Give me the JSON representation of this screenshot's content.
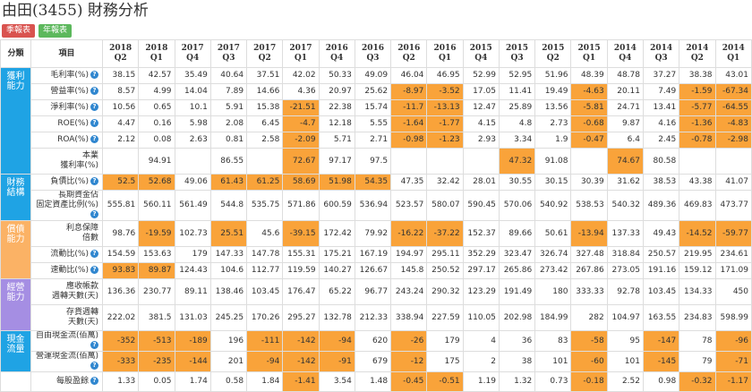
{
  "header": {
    "title": "由田(3455) 財務分析",
    "buttons": [
      {
        "label": "季報表",
        "color": "#d9534f"
      },
      {
        "label": "年報表",
        "color": "#5cb85c"
      }
    ]
  },
  "table": {
    "highlight_color": "#f9a33a",
    "columns": [
      "分類",
      "項目"
    ],
    "periods": [
      "2018\nQ2",
      "2018\nQ1",
      "2017\nQ4",
      "2017\nQ3",
      "2017\nQ2",
      "2017\nQ1",
      "2016\nQ4",
      "2016\nQ3",
      "2016\nQ2",
      "2016\nQ1",
      "2015\nQ4",
      "2015\nQ3",
      "2015\nQ2",
      "2015\nQ1",
      "2014\nQ4",
      "2014\nQ3",
      "2014\nQ2",
      "2014\nQ1"
    ],
    "groups": [
      {
        "label": "獲利\n能力",
        "color": "#1fa3e4",
        "rows": [
          {
            "label": "毛利率(%)",
            "help": true,
            "values": [
              38.15,
              42.57,
              35.49,
              40.64,
              37.51,
              42.02,
              50.33,
              49.09,
              46.04,
              46.95,
              52.99,
              52.95,
              51.96,
              48.39,
              48.78,
              37.27,
              38.38,
              43.01
            ],
            "highlight": []
          },
          {
            "label": "營益率(%)",
            "help": true,
            "values": [
              8.57,
              4.99,
              14.04,
              7.89,
              14.66,
              4.36,
              20.97,
              25.62,
              -8.97,
              -3.52,
              17.05,
              11.41,
              19.49,
              -4.63,
              20.11,
              7.49,
              -1.59,
              -67.34
            ],
            "highlight": [
              8,
              9,
              13,
              16,
              17
            ]
          },
          {
            "label": "淨利率(%)",
            "help": true,
            "values": [
              10.56,
              0.65,
              10.1,
              5.91,
              15.38,
              -21.51,
              22.38,
              15.74,
              -11.7,
              -13.13,
              12.47,
              25.89,
              13.56,
              -5.81,
              24.71,
              13.41,
              -5.77,
              -64.55
            ],
            "highlight": [
              5,
              8,
              9,
              13,
              16,
              17
            ]
          },
          {
            "label": "ROE(%)",
            "help": true,
            "values": [
              4.47,
              0.16,
              5.98,
              2.08,
              6.45,
              -4.7,
              12.18,
              5.55,
              -1.64,
              -1.77,
              4.15,
              4.8,
              2.73,
              -0.68,
              9.87,
              4.16,
              -1.36,
              -4.83
            ],
            "highlight": [
              5,
              8,
              9,
              13,
              16,
              17
            ]
          },
          {
            "label": "ROA(%)",
            "help": true,
            "values": [
              2.12,
              0.08,
              2.63,
              0.81,
              2.58,
              -2.09,
              5.71,
              2.71,
              -0.98,
              -1.23,
              2.93,
              3.34,
              1.9,
              -0.47,
              6.4,
              2.45,
              -0.78,
              -2.98
            ],
            "highlight": [
              5,
              8,
              9,
              13,
              16,
              17
            ]
          },
          {
            "label": "本業\n獲利率(%)",
            "help": false,
            "values": [
              null,
              94.91,
              null,
              86.55,
              null,
              72.67,
              97.17,
              97.5,
              null,
              null,
              null,
              47.32,
              91.08,
              null,
              74.67,
              80.58,
              null,
              null
            ],
            "highlight": [
              5,
              11,
              14
            ]
          }
        ]
      },
      {
        "label": "財務\n結構",
        "color": "#1fa3e4",
        "rows": [
          {
            "label": "負債比(%)",
            "help": true,
            "values": [
              52.5,
              52.68,
              49.06,
              61.43,
              61.25,
              58.69,
              51.98,
              54.35,
              47.35,
              32.42,
              28.01,
              30.55,
              30.15,
              30.39,
              31.62,
              38.53,
              43.38,
              41.07
            ],
            "highlight": [
              0,
              1,
              3,
              4,
              5,
              6,
              7
            ]
          },
          {
            "label": "長期資金佔\n固定資產比例(%)",
            "help": true,
            "values": [
              555.81,
              560.11,
              561.49,
              544.8,
              535.75,
              571.86,
              600.59,
              536.94,
              523.57,
              580.07,
              590.45,
              570.06,
              540.92,
              538.53,
              540.32,
              489.36,
              469.83,
              473.77
            ],
            "highlight": []
          }
        ]
      },
      {
        "label": "償債\n能力",
        "color": "#fbb265",
        "rows": [
          {
            "label": "利息保障\n倍數",
            "help": false,
            "values": [
              98.76,
              -19.59,
              102.73,
              25.51,
              45.6,
              -39.15,
              172.42,
              79.92,
              -16.22,
              -37.22,
              152.37,
              89.66,
              50.61,
              -13.94,
              137.33,
              49.43,
              -14.52,
              -59.77
            ],
            "highlight": [
              1,
              3,
              5,
              8,
              9,
              13,
              16,
              17
            ]
          },
          {
            "label": "流動比(%)",
            "help": true,
            "values": [
              154.59,
              153.63,
              179,
              147.33,
              147.78,
              155.31,
              175.21,
              167.19,
              194.97,
              295.11,
              352.29,
              323.47,
              326.74,
              327.48,
              318.84,
              250.57,
              219.95,
              234.61
            ],
            "highlight": []
          },
          {
            "label": "速動比(%)",
            "help": true,
            "values": [
              93.83,
              89.87,
              124.43,
              104.6,
              112.77,
              119.59,
              140.27,
              126.67,
              145.8,
              250.52,
              297.17,
              265.86,
              273.42,
              267.86,
              273.05,
              191.16,
              159.12,
              171.09
            ],
            "highlight": [
              0,
              1
            ]
          }
        ]
      },
      {
        "label": "經營\n能力",
        "color": "#a58ee3",
        "rows": [
          {
            "label": "應收帳款\n週轉天數(天)",
            "help": false,
            "values": [
              136.36,
              230.77,
              89.11,
              138.46,
              103.45,
              176.47,
              65.22,
              96.77,
              243.24,
              290.32,
              123.29,
              191.49,
              180,
              333.33,
              92.78,
              103.45,
              134.33,
              450
            ],
            "highlight": []
          },
          {
            "label": "存貨週轉\n天數(天)",
            "help": false,
            "values": [
              222.02,
              381.5,
              131.03,
              245.25,
              170.26,
              295.27,
              132.78,
              212.33,
              338.94,
              227.59,
              110.05,
              202.98,
              184.99,
              282,
              104.97,
              163.55,
              234.83,
              598.99
            ],
            "highlight": []
          }
        ]
      },
      {
        "label": "現金\n流量",
        "color": "#1fa3e4",
        "rows": [
          {
            "label": "自由現金流(佰萬)",
            "help": true,
            "values": [
              -352,
              -513,
              -189,
              196,
              -111,
              -142,
              -94,
              620,
              -26,
              179,
              4,
              36,
              83,
              -58,
              95,
              -147,
              78,
              -96
            ],
            "highlight": [
              0,
              1,
              2,
              4,
              5,
              6,
              8,
              13,
              15,
              17
            ]
          },
          {
            "label": "營運現金流(佰萬)",
            "help": true,
            "values": [
              -333,
              -235,
              -144,
              201,
              -94,
              -142,
              -91,
              679,
              -12,
              175,
              2,
              38,
              101,
              -60,
              101,
              -145,
              79,
              -71
            ],
            "highlight": [
              0,
              1,
              2,
              4,
              5,
              6,
              8,
              13,
              15,
              17
            ]
          }
        ]
      },
      {
        "rows": [
          {
            "label": "每股盈餘",
            "help": true,
            "values": [
              1.33,
              0.05,
              1.74,
              0.58,
              1.84,
              -1.41,
              3.54,
              1.48,
              -0.45,
              -0.51,
              1.19,
              1.32,
              0.73,
              -0.18,
              2.52,
              0.98,
              -0.32,
              -1.17
            ],
            "highlight": [
              5,
              8,
              9,
              13,
              16,
              17
            ]
          }
        ]
      }
    ]
  }
}
